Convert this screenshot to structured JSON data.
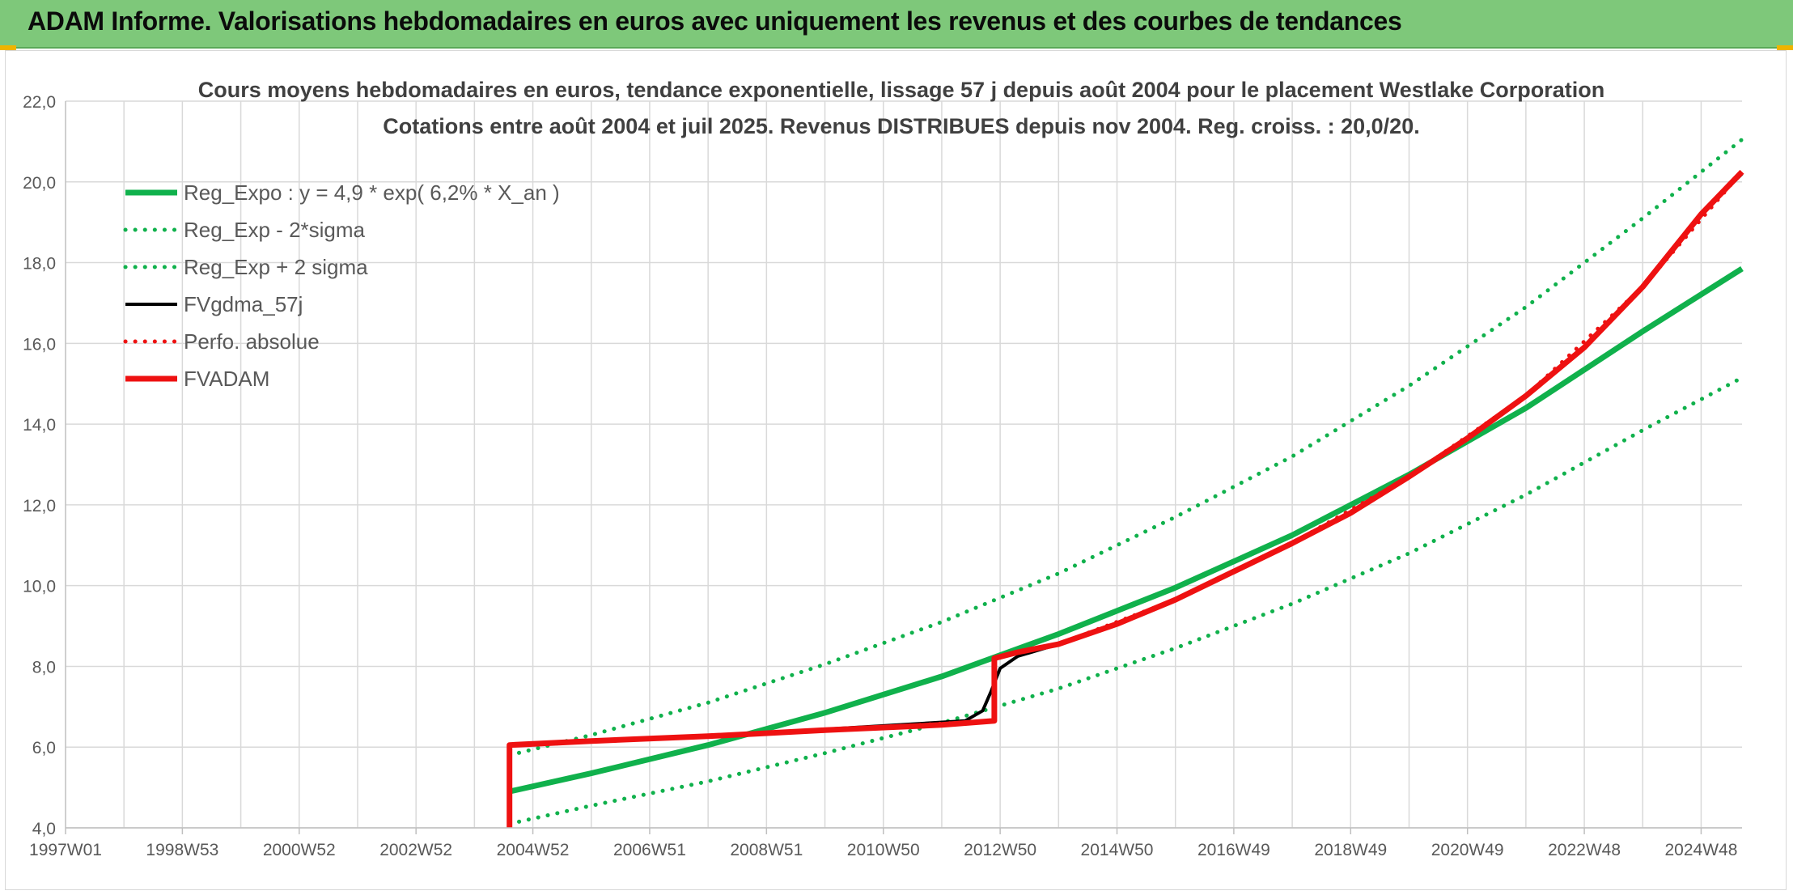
{
  "header": {
    "title": "ADAM Informe. Valorisations hebdomadaires en euros avec uniquement les revenus et des courbes de tendances"
  },
  "colors": {
    "header_bg": "#7ec87a",
    "green": "#10b14c",
    "black": "#000000",
    "red": "#ee1111",
    "grid": "#d9d9d9",
    "axis_text": "#595959",
    "title_text": "#404040"
  },
  "chart_data": {
    "type": "line",
    "title_line1": "Cours moyens hebdomadaires en euros, tendance exponentielle, lissage 57 j depuis août 2004 pour le placement Westlake Corporation",
    "title_line2": "Cotations entre août 2004 et juil 2025. Revenus DISTRIBUES depuis nov 2004. Reg. croiss. : 20,0/20.",
    "xlabel": "",
    "ylabel": "",
    "ylim": [
      4.0,
      22.0
    ],
    "y_ticks": [
      "4,0",
      "6,0",
      "8,0",
      "10,0",
      "12,0",
      "14,0",
      "16,0",
      "18,0",
      "20,0",
      "22,0"
    ],
    "xlim": [
      1997.0,
      2025.7
    ],
    "x_ticks": [
      {
        "label": "1997W01",
        "x": 1997.0
      },
      {
        "label": "1998W53",
        "x": 1999.0
      },
      {
        "label": "2000W52",
        "x": 2001.0
      },
      {
        "label": "2002W52",
        "x": 2003.0
      },
      {
        "label": "2004W52",
        "x": 2005.0
      },
      {
        "label": "2006W51",
        "x": 2007.0
      },
      {
        "label": "2008W51",
        "x": 2009.0
      },
      {
        "label": "2010W50",
        "x": 2011.0
      },
      {
        "label": "2012W50",
        "x": 2013.0
      },
      {
        "label": "2014W50",
        "x": 2015.0
      },
      {
        "label": "2016W49",
        "x": 2017.0
      },
      {
        "label": "2018W49",
        "x": 2019.0
      },
      {
        "label": "2020W49",
        "x": 2021.0
      },
      {
        "label": "2022W48",
        "x": 2023.0
      },
      {
        "label": "2024W48",
        "x": 2025.0
      }
    ],
    "grid": true,
    "legend_position": "top-left",
    "series": [
      {
        "name": "Reg_Expo : y = 4,9 * exp( 6,2% *  X_an )",
        "style": "solid-thick",
        "color": "#10b14c",
        "points": [
          [
            2004.6,
            4.9
          ],
          [
            2006.0,
            5.35
          ],
          [
            2008.0,
            6.05
          ],
          [
            2010.0,
            6.85
          ],
          [
            2012.0,
            7.75
          ],
          [
            2014.0,
            8.8
          ],
          [
            2016.0,
            9.95
          ],
          [
            2018.0,
            11.25
          ],
          [
            2020.0,
            12.75
          ],
          [
            2022.0,
            14.4
          ],
          [
            2024.0,
            16.3
          ],
          [
            2025.7,
            17.85
          ]
        ]
      },
      {
        "name": "Reg_Exp - 2*sigma",
        "style": "dotted",
        "color": "#10b14c",
        "points": [
          [
            2004.6,
            4.1
          ],
          [
            2006.0,
            4.55
          ],
          [
            2008.0,
            5.15
          ],
          [
            2010.0,
            5.85
          ],
          [
            2012.0,
            6.6
          ],
          [
            2014.0,
            7.45
          ],
          [
            2016.0,
            8.45
          ],
          [
            2018.0,
            9.55
          ],
          [
            2020.0,
            10.8
          ],
          [
            2022.0,
            12.25
          ],
          [
            2024.0,
            13.85
          ],
          [
            2025.7,
            15.15
          ]
        ]
      },
      {
        "name": "Reg_Exp + 2 sigma",
        "style": "dotted",
        "color": "#10b14c",
        "points": [
          [
            2004.6,
            5.8
          ],
          [
            2006.0,
            6.3
          ],
          [
            2008.0,
            7.1
          ],
          [
            2010.0,
            8.05
          ],
          [
            2012.0,
            9.1
          ],
          [
            2014.0,
            10.3
          ],
          [
            2016.0,
            11.7
          ],
          [
            2018.0,
            13.2
          ],
          [
            2020.0,
            14.95
          ],
          [
            2022.0,
            16.9
          ],
          [
            2024.0,
            19.1
          ],
          [
            2025.7,
            21.05
          ]
        ]
      },
      {
        "name": "FVgdma_57j",
        "style": "solid",
        "color": "#000000",
        "points": [
          [
            2004.6,
            6.05
          ],
          [
            2008.0,
            6.27
          ],
          [
            2012.4,
            6.65
          ],
          [
            2012.7,
            6.9
          ],
          [
            2012.85,
            7.4
          ],
          [
            2013.0,
            7.95
          ],
          [
            2013.3,
            8.25
          ],
          [
            2014.0,
            8.55
          ],
          [
            2015.0,
            9.05
          ],
          [
            2016.0,
            9.65
          ],
          [
            2017.0,
            10.35
          ],
          [
            2018.0,
            11.05
          ],
          [
            2019.0,
            11.8
          ],
          [
            2020.0,
            12.7
          ],
          [
            2021.0,
            13.65
          ],
          [
            2022.0,
            14.7
          ],
          [
            2023.0,
            15.9
          ],
          [
            2024.0,
            17.4
          ],
          [
            2025.0,
            19.2
          ],
          [
            2025.7,
            20.2
          ]
        ]
      },
      {
        "name": "Perfo. absolue",
        "style": "dotted",
        "color": "#ee1111",
        "points": [
          [
            2004.6,
            6.05
          ],
          [
            2008.0,
            6.27
          ],
          [
            2012.9,
            6.65
          ],
          [
            2012.9,
            8.2
          ],
          [
            2014.0,
            8.55
          ],
          [
            2016.0,
            9.65
          ],
          [
            2018.0,
            11.05
          ],
          [
            2020.0,
            12.7
          ],
          [
            2022.0,
            14.7
          ],
          [
            2024.0,
            17.4
          ],
          [
            2025.7,
            20.25
          ]
        ]
      },
      {
        "name": "FVADAM",
        "style": "solid-thick",
        "color": "#ee1111",
        "points": [
          [
            2004.6,
            4.0
          ],
          [
            2004.6,
            6.05
          ],
          [
            2006.0,
            6.15
          ],
          [
            2008.0,
            6.27
          ],
          [
            2010.0,
            6.42
          ],
          [
            2012.0,
            6.55
          ],
          [
            2012.9,
            6.65
          ],
          [
            2012.9,
            8.2
          ],
          [
            2013.3,
            8.35
          ],
          [
            2014.0,
            8.55
          ],
          [
            2015.0,
            9.05
          ],
          [
            2016.0,
            9.65
          ],
          [
            2017.0,
            10.35
          ],
          [
            2018.0,
            11.05
          ],
          [
            2019.0,
            11.8
          ],
          [
            2020.0,
            12.7
          ],
          [
            2021.0,
            13.65
          ],
          [
            2022.0,
            14.7
          ],
          [
            2023.0,
            15.9
          ],
          [
            2024.0,
            17.4
          ],
          [
            2025.0,
            19.2
          ],
          [
            2025.7,
            20.25
          ]
        ]
      }
    ]
  }
}
